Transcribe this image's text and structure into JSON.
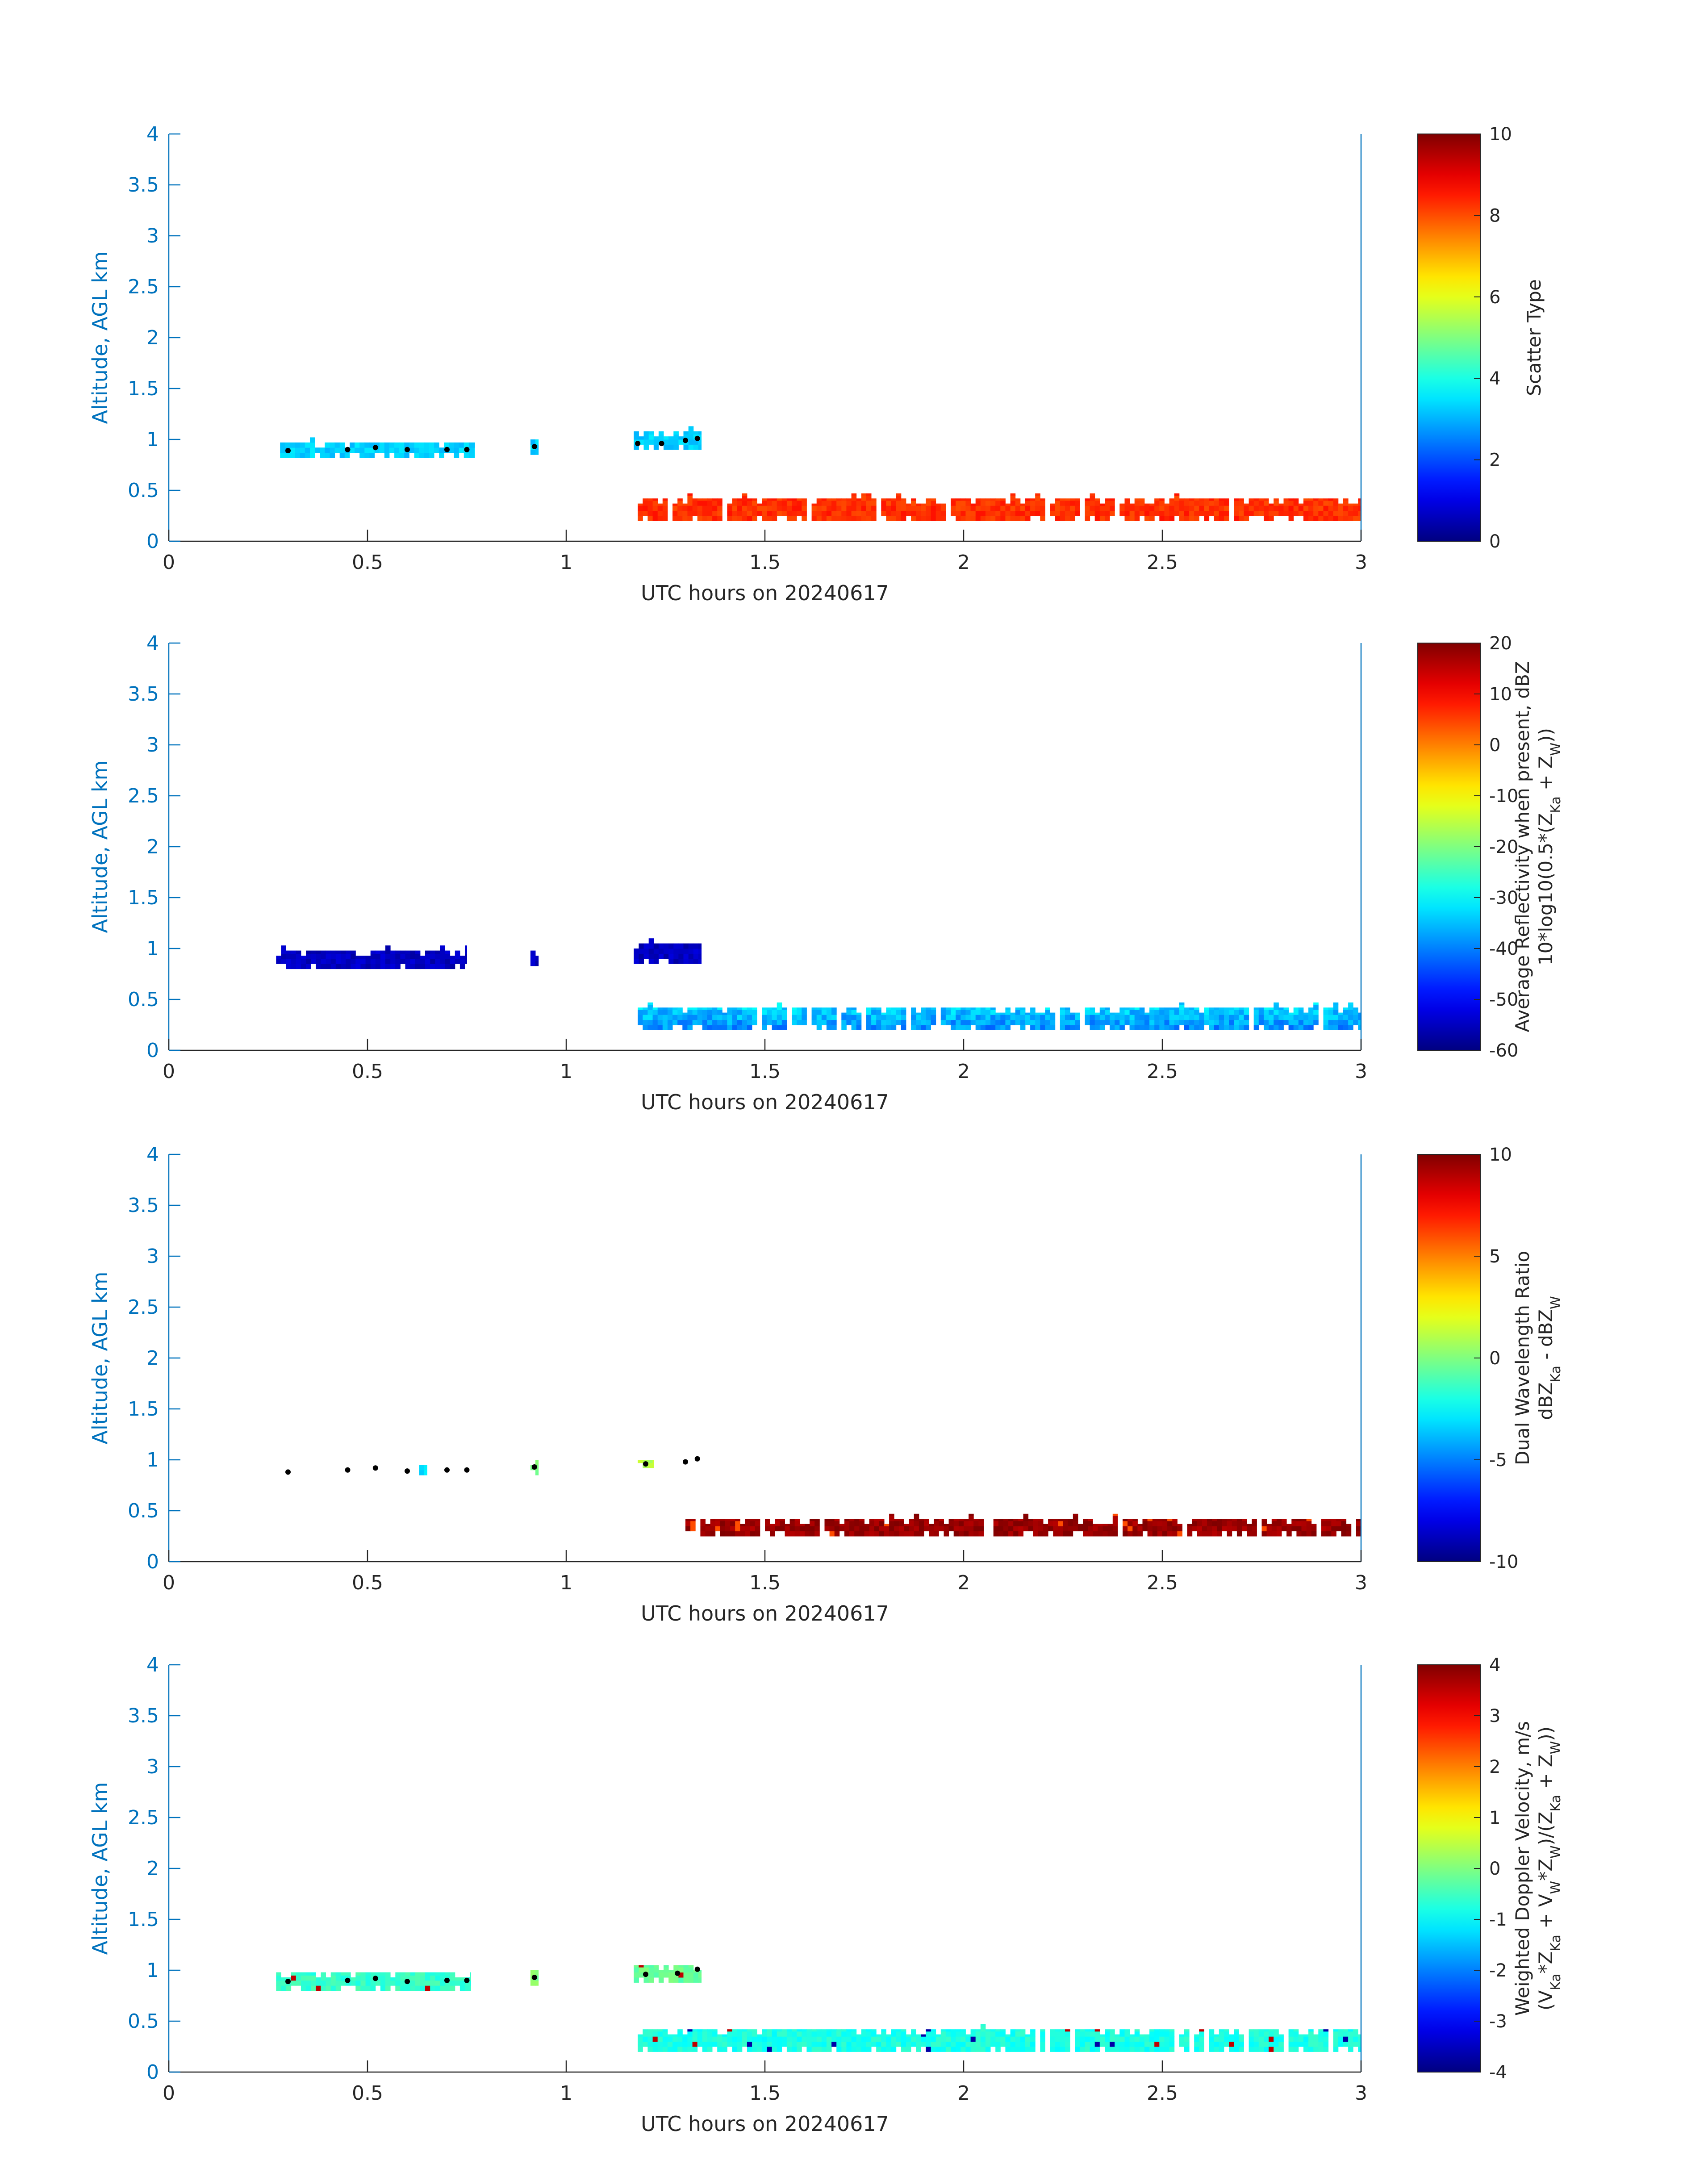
{
  "figure": {
    "x_axis_label": "UTC hours on 20240617"
  },
  "chart_data": [
    {
      "type": "heatmap",
      "xlabel": "UTC hours on 20240617",
      "ylabel": "Altitude, AGL km",
      "xlim": [
        0,
        3
      ],
      "ylim": [
        0,
        4
      ],
      "x_ticks": [
        "0",
        "0.5",
        "1",
        "1.5",
        "2",
        "2.5",
        "3"
      ],
      "y_ticks": [
        "0",
        "0.5",
        "1",
        "1.5",
        "2",
        "2.5",
        "3",
        "3.5",
        "4"
      ],
      "colorbar": {
        "label_lines": [
          "Scatter Type"
        ],
        "range": [
          0,
          10
        ],
        "ticks": [
          "0",
          "2",
          "4",
          "6",
          "8",
          "10"
        ]
      },
      "layers": [
        {
          "x": [
            0.28,
            0.77
          ],
          "y": [
            0.82,
            0.97
          ],
          "value": 3.3
        },
        {
          "x": [
            0.91,
            0.93
          ],
          "y": [
            0.85,
            1.0
          ],
          "value": 3.3
        },
        {
          "x": [
            1.17,
            1.34
          ],
          "y": [
            0.9,
            1.08
          ],
          "value": 3.3
        },
        {
          "x": [
            1.18,
            3.0
          ],
          "y": [
            0.2,
            0.42
          ],
          "value": 8.3
        }
      ],
      "cloud_base_dots": [
        [
          0.3,
          0.89
        ],
        [
          0.45,
          0.9
        ],
        [
          0.52,
          0.92
        ],
        [
          0.6,
          0.9
        ],
        [
          0.7,
          0.9
        ],
        [
          0.75,
          0.9
        ],
        [
          0.92,
          0.93
        ],
        [
          1.18,
          0.96
        ],
        [
          1.24,
          0.96
        ],
        [
          1.3,
          0.99
        ],
        [
          1.33,
          1.01
        ]
      ]
    },
    {
      "type": "heatmap",
      "xlabel": "UTC hours on 20240617",
      "ylabel": "Altitude, AGL km",
      "xlim": [
        0,
        3
      ],
      "ylim": [
        0,
        4
      ],
      "x_ticks": [
        "0",
        "0.5",
        "1",
        "1.5",
        "2",
        "2.5",
        "3"
      ],
      "y_ticks": [
        "0",
        "0.5",
        "1",
        "1.5",
        "2",
        "2.5",
        "3",
        "3.5",
        "4"
      ],
      "colorbar": {
        "label_lines": [
          "Average Reflectivity when present, dBZ",
          "10*log10(0.5*(Z_Ka + Z_W))"
        ],
        "range": [
          -60,
          20
        ],
        "ticks": [
          "-60",
          "-50",
          "-40",
          "-30",
          "-20",
          "-10",
          "0",
          "10",
          "20"
        ]
      },
      "layers": [
        {
          "x": [
            0.27,
            0.75
          ],
          "y": [
            0.8,
            0.98
          ],
          "value": -55
        },
        {
          "x": [
            0.91,
            0.93
          ],
          "y": [
            0.83,
            0.98
          ],
          "value": -55
        },
        {
          "x": [
            1.17,
            1.34
          ],
          "y": [
            0.85,
            1.05
          ],
          "value": -55
        },
        {
          "x": [
            1.18,
            3.0
          ],
          "y": [
            0.2,
            0.42
          ],
          "value": -36
        }
      ],
      "cloud_base_dots": []
    },
    {
      "type": "heatmap",
      "xlabel": "UTC hours on 20240617",
      "ylabel": "Altitude, AGL km",
      "xlim": [
        0,
        3
      ],
      "ylim": [
        0,
        4
      ],
      "x_ticks": [
        "0",
        "0.5",
        "1",
        "1.5",
        "2",
        "2.5",
        "3"
      ],
      "y_ticks": [
        "0",
        "0.5",
        "1",
        "1.5",
        "2",
        "2.5",
        "3",
        "3.5",
        "4"
      ],
      "colorbar": {
        "label_lines": [
          "Dual Wavelength Ratio",
          "dBZ_Ka - dBZ_W"
        ],
        "range": [
          -10,
          10
        ],
        "ticks": [
          "-10",
          "-5",
          "0",
          "5",
          "10"
        ]
      },
      "layers": [
        {
          "x": [
            0.63,
            0.65
          ],
          "y": [
            0.85,
            0.95
          ],
          "value": -3
        },
        {
          "x": [
            0.91,
            0.93
          ],
          "y": [
            0.85,
            1.0
          ],
          "value": 0
        },
        {
          "x": [
            1.18,
            1.22
          ],
          "y": [
            0.92,
            1.0
          ],
          "value": 1
        },
        {
          "x": [
            1.3,
            3.0
          ],
          "y": [
            0.25,
            0.42
          ],
          "value": 9.5
        }
      ],
      "cloud_base_dots": [
        [
          0.3,
          0.88
        ],
        [
          0.45,
          0.9
        ],
        [
          0.52,
          0.92
        ],
        [
          0.6,
          0.89
        ],
        [
          0.7,
          0.9
        ],
        [
          0.75,
          0.9
        ],
        [
          0.92,
          0.93
        ],
        [
          1.2,
          0.96
        ],
        [
          1.3,
          0.98
        ],
        [
          1.33,
          1.01
        ]
      ]
    },
    {
      "type": "heatmap",
      "xlabel": "UTC hours on 20240617",
      "ylabel": "Altitude, AGL km",
      "xlim": [
        0,
        3
      ],
      "ylim": [
        0,
        4
      ],
      "x_ticks": [
        "0",
        "0.5",
        "1",
        "1.5",
        "2",
        "2.5",
        "3"
      ],
      "y_ticks": [
        "0",
        "0.5",
        "1",
        "1.5",
        "2",
        "2.5",
        "3",
        "3.5",
        "4"
      ],
      "colorbar": {
        "label_lines": [
          "Weighted Doppler Velocity, m/s",
          "(V_Ka*Z_Ka + V_W*Z_W)/(Z_Ka + Z_W))"
        ],
        "range": [
          -4,
          4
        ],
        "ticks": [
          "-4",
          "-3",
          "-2",
          "-1",
          "0",
          "1",
          "2",
          "3",
          "4"
        ]
      },
      "layers": [
        {
          "x": [
            0.27,
            0.76
          ],
          "y": [
            0.8,
            0.98
          ],
          "value": -0.6
        },
        {
          "x": [
            0.91,
            0.93
          ],
          "y": [
            0.85,
            1.0
          ],
          "value": 0
        },
        {
          "x": [
            1.17,
            1.34
          ],
          "y": [
            0.88,
            1.05
          ],
          "value": -0.2
        },
        {
          "x": [
            1.18,
            3.0
          ],
          "y": [
            0.2,
            0.42
          ],
          "value": -0.8
        }
      ],
      "cloud_base_dots": [
        [
          0.3,
          0.89
        ],
        [
          0.45,
          0.9
        ],
        [
          0.52,
          0.92
        ],
        [
          0.6,
          0.89
        ],
        [
          0.7,
          0.9
        ],
        [
          0.75,
          0.9
        ],
        [
          0.92,
          0.93
        ],
        [
          1.2,
          0.96
        ],
        [
          1.28,
          0.97
        ],
        [
          1.33,
          1.01
        ]
      ]
    }
  ]
}
